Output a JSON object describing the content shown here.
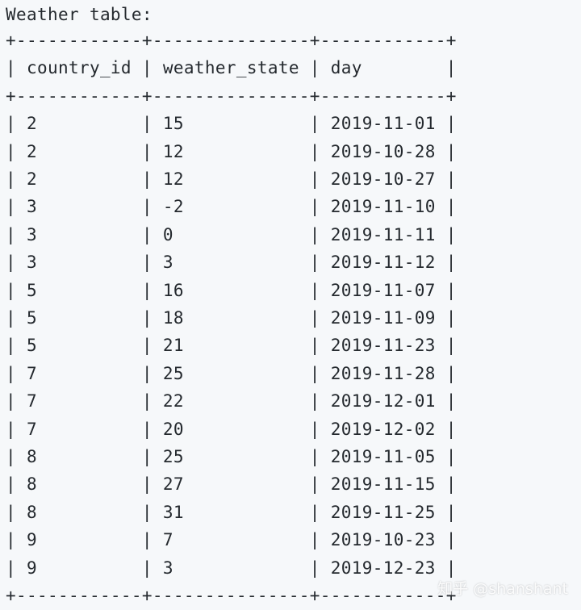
{
  "title": "Weather table:",
  "border": "+------------+---------------+------------+",
  "columns": [
    "country_id",
    "weather_state",
    "day"
  ],
  "rows": [
    [
      "2",
      "15",
      "2019-11-01"
    ],
    [
      "2",
      "12",
      "2019-10-28"
    ],
    [
      "2",
      "12",
      "2019-10-27"
    ],
    [
      "3",
      "-2",
      "2019-11-10"
    ],
    [
      "3",
      "0",
      "2019-11-11"
    ],
    [
      "3",
      "3",
      "2019-11-12"
    ],
    [
      "5",
      "16",
      "2019-11-07"
    ],
    [
      "5",
      "18",
      "2019-11-09"
    ],
    [
      "5",
      "21",
      "2019-11-23"
    ],
    [
      "7",
      "25",
      "2019-11-28"
    ],
    [
      "7",
      "22",
      "2019-12-01"
    ],
    [
      "7",
      "20",
      "2019-12-02"
    ],
    [
      "8",
      "25",
      "2019-11-05"
    ],
    [
      "8",
      "27",
      "2019-11-15"
    ],
    [
      "8",
      "31",
      "2019-11-25"
    ],
    [
      "9",
      "7",
      "2019-10-23"
    ],
    [
      "9",
      "3",
      "2019-12-23"
    ]
  ],
  "watermark": "知乎 @shanshant",
  "colors": {
    "background": "#f6f8fa",
    "text": "#24292e"
  }
}
